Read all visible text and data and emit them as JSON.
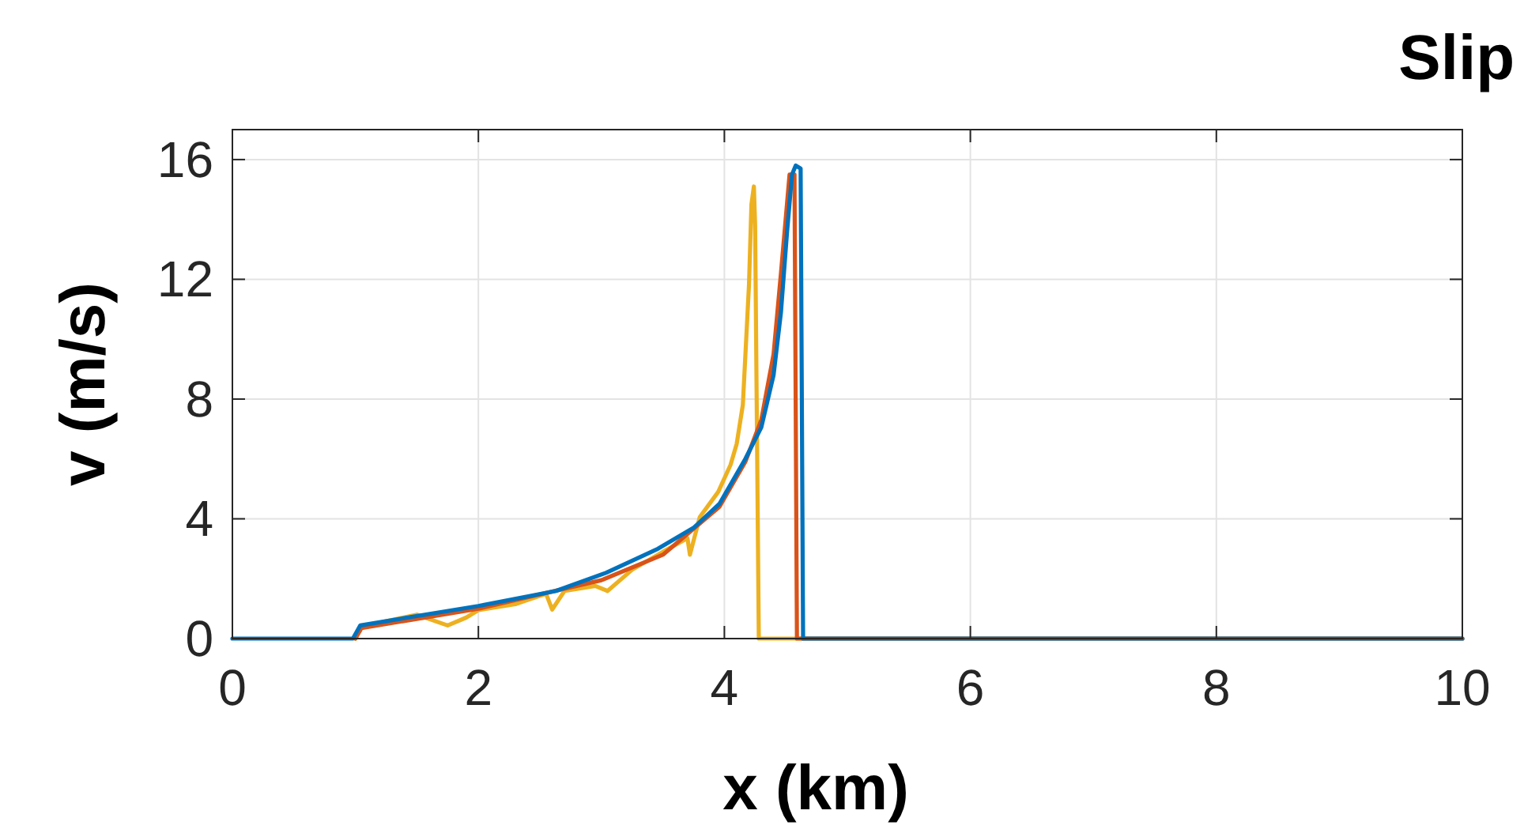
{
  "chart_data": {
    "type": "line",
    "title": "Slip",
    "xlabel": "x (km)",
    "ylabel": "v (m/s)",
    "xlim": [
      0,
      10
    ],
    "ylim": [
      0,
      17
    ],
    "xticks": [
      0,
      2,
      4,
      6,
      8,
      10
    ],
    "yticks": [
      0,
      4,
      8,
      12,
      16
    ],
    "grid": true,
    "marker": "none",
    "line_style": "solid",
    "series": [
      {
        "color": "#edb120",
        "x": [
          1.0,
          1.05,
          1.5,
          1.75,
          1.9,
          2.0,
          2.3,
          2.55,
          2.6,
          2.7,
          2.95,
          3.05,
          3.25,
          3.5,
          3.7,
          3.72,
          3.8,
          3.95,
          4.05,
          4.1,
          4.15,
          4.2,
          4.22,
          4.24,
          4.25,
          4.28,
          10
        ],
        "values": [
          0,
          0.4,
          0.8,
          0.44,
          0.7,
          0.95,
          1.15,
          1.5,
          0.97,
          1.59,
          1.76,
          1.59,
          2.3,
          2.9,
          3.35,
          2.8,
          4.06,
          4.9,
          5.8,
          6.5,
          7.8,
          11.8,
          14.5,
          15.1,
          13.8,
          0,
          0
        ]
      },
      {
        "color": "#d95319",
        "x": [
          1.0,
          1.05,
          2.0,
          3.0,
          3.5,
          3.96,
          4.17,
          4.3,
          4.4,
          4.46,
          4.53,
          4.57,
          4.59,
          10
        ],
        "values": [
          0,
          0.35,
          1.0,
          1.95,
          2.8,
          4.4,
          5.9,
          7.3,
          9.5,
          12.2,
          15.5,
          15.5,
          0,
          0
        ]
      },
      {
        "color": "#0072bd",
        "x": [
          0,
          0.98,
          1.04,
          2.0,
          2.63,
          3.04,
          3.46,
          3.75,
          3.96,
          4.17,
          4.3,
          4.4,
          4.46,
          4.51,
          4.55,
          4.58,
          4.62,
          4.64,
          10
        ],
        "values": [
          0,
          0,
          0.44,
          1.09,
          1.59,
          2.2,
          3.0,
          3.7,
          4.5,
          6.0,
          7.05,
          8.8,
          10.9,
          13.6,
          15.5,
          15.8,
          15.7,
          0,
          0
        ]
      }
    ]
  }
}
